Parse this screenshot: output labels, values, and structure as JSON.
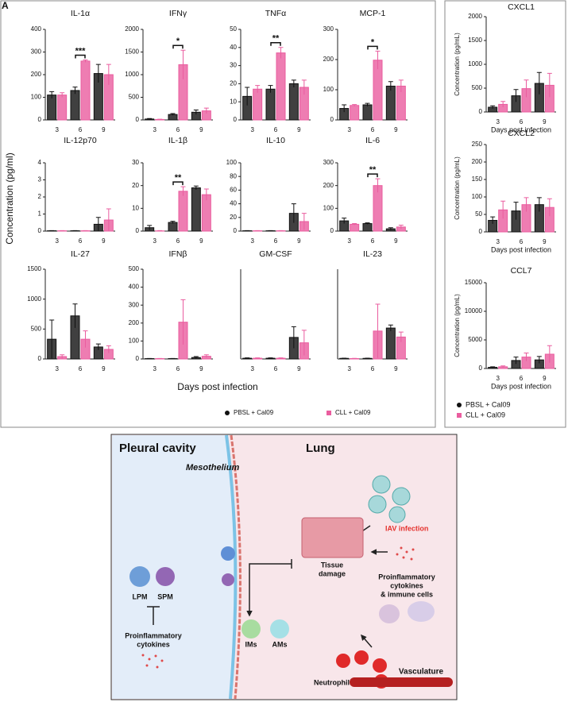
{
  "figure": {
    "panel_label": "A",
    "xlabel": "Days post infection",
    "ylabel": "Concentration (pg/ml)"
  },
  "chart_data": [
    {
      "type": "bar",
      "title": "IL-1α",
      "categories": [
        "3",
        "6",
        "9"
      ],
      "ylim": [
        0,
        400
      ],
      "yticks": [
        0,
        100,
        200,
        300,
        400
      ],
      "annotation": {
        "text": "***",
        "category": "6"
      },
      "series": [
        {
          "name": "PBSL + Cal09",
          "color": "#404040",
          "values": [
            110,
            130,
            205
          ],
          "errors": [
            15,
            15,
            40
          ]
        },
        {
          "name": "CLL + Cal09",
          "color": "#ea5d9f",
          "values": [
            110,
            260,
            200
          ],
          "errors": [
            10,
            5,
            45
          ]
        }
      ]
    },
    {
      "type": "bar",
      "title": "IFNγ",
      "categories": [
        "3",
        "6",
        "9"
      ],
      "ylim": [
        0,
        2000
      ],
      "yticks": [
        0,
        500,
        1000,
        1500,
        2000
      ],
      "annotation": {
        "text": "*",
        "category": "6"
      },
      "series": [
        {
          "name": "PBSL + Cal09",
          "color": "#404040",
          "values": [
            20,
            120,
            170
          ],
          "errors": [
            10,
            20,
            50
          ]
        },
        {
          "name": "CLL + Cal09",
          "color": "#ea5d9f",
          "values": [
            10,
            1220,
            200
          ],
          "errors": [
            5,
            320,
            60
          ]
        }
      ]
    },
    {
      "type": "bar",
      "title": "TNFα",
      "categories": [
        "3",
        "6",
        "9"
      ],
      "ylim": [
        0,
        50
      ],
      "yticks": [
        0,
        10,
        20,
        30,
        40,
        50
      ],
      "annotation": {
        "text": "**",
        "category": "6"
      },
      "series": [
        {
          "name": "PBSL + Cal09",
          "color": "#404040",
          "values": [
            13,
            17,
            20
          ],
          "errors": [
            5,
            2,
            2
          ]
        },
        {
          "name": "CLL + Cal09",
          "color": "#ea5d9f",
          "values": [
            17,
            37,
            18
          ],
          "errors": [
            2,
            3,
            4
          ]
        }
      ]
    },
    {
      "type": "bar",
      "title": "MCP-1",
      "categories": [
        "3",
        "6",
        "9"
      ],
      "ylim": [
        0,
        300
      ],
      "yticks": [
        0,
        100,
        200,
        300
      ],
      "annotation": {
        "text": "*",
        "category": "6"
      },
      "series": [
        {
          "name": "PBSL + Cal09",
          "color": "#404040",
          "values": [
            38,
            50,
            112
          ],
          "errors": [
            12,
            5,
            15
          ]
        },
        {
          "name": "CLL + Cal09",
          "color": "#ea5d9f",
          "values": [
            48,
            198,
            112
          ],
          "errors": [
            3,
            30,
            20
          ]
        }
      ]
    },
    {
      "type": "bar",
      "title": "IL-12p70",
      "categories": [
        "3",
        "6",
        "9"
      ],
      "ylim": [
        0,
        4
      ],
      "yticks": [
        0,
        1,
        2,
        3,
        4
      ],
      "series": [
        {
          "name": "PBSL + Cal09",
          "color": "#404040",
          "values": [
            0.02,
            0.02,
            0.4
          ],
          "errors": [
            0.01,
            0.01,
            0.4
          ]
        },
        {
          "name": "CLL + Cal09",
          "color": "#ea5d9f",
          "values": [
            0.02,
            0.02,
            0.65
          ],
          "errors": [
            0.01,
            0.01,
            0.65
          ]
        }
      ]
    },
    {
      "type": "bar",
      "title": "IL-1β",
      "categories": [
        "3",
        "6",
        "9"
      ],
      "ylim": [
        0,
        30
      ],
      "yticks": [
        0,
        10,
        20,
        30
      ],
      "annotation": {
        "text": "**",
        "category": "6"
      },
      "series": [
        {
          "name": "PBSL + Cal09",
          "color": "#404040",
          "values": [
            1.5,
            3.8,
            19
          ],
          "errors": [
            1,
            0.5,
            0.8
          ]
        },
        {
          "name": "CLL + Cal09",
          "color": "#ea5d9f",
          "values": [
            0.1,
            17.5,
            16
          ],
          "errors": [
            0.1,
            2,
            2.5
          ]
        }
      ]
    },
    {
      "type": "bar",
      "title": "IL-10",
      "categories": [
        "3",
        "6",
        "9"
      ],
      "ylim": [
        0,
        100
      ],
      "yticks": [
        0,
        20,
        40,
        60,
        80,
        100
      ],
      "series": [
        {
          "name": "PBSL + Cal09",
          "color": "#404040",
          "values": [
            0.5,
            0.5,
            26
          ],
          "errors": [
            0.2,
            0.2,
            14
          ]
        },
        {
          "name": "CLL + Cal09",
          "color": "#ea5d9f",
          "values": [
            0.5,
            0.5,
            14
          ],
          "errors": [
            0.2,
            0.2,
            12
          ]
        }
      ]
    },
    {
      "type": "bar",
      "title": "IL-6",
      "categories": [
        "3",
        "6",
        "9"
      ],
      "ylim": [
        0,
        300
      ],
      "yticks": [
        0,
        100,
        200,
        300
      ],
      "annotation": {
        "text": "**",
        "category": "6"
      },
      "series": [
        {
          "name": "PBSL + Cal09",
          "color": "#404040",
          "values": [
            45,
            33,
            10
          ],
          "errors": [
            12,
            3,
            5
          ]
        },
        {
          "name": "CLL + Cal09",
          "color": "#ea5d9f",
          "values": [
            30,
            200,
            18
          ],
          "errors": [
            3,
            30,
            8
          ]
        }
      ]
    },
    {
      "type": "bar",
      "title": "IL-27",
      "categories": [
        "3",
        "6",
        "9"
      ],
      "ylim": [
        0,
        1500
      ],
      "yticks": [
        0,
        500,
        1000,
        1500
      ],
      "series": [
        {
          "name": "PBSL + Cal09",
          "color": "#404040",
          "values": [
            330,
            720,
            200
          ],
          "errors": [
            320,
            200,
            50
          ]
        },
        {
          "name": "CLL + Cal09",
          "color": "#ea5d9f",
          "values": [
            40,
            330,
            160
          ],
          "errors": [
            30,
            140,
            60
          ]
        }
      ]
    },
    {
      "type": "bar",
      "title": "IFNβ",
      "categories": [
        "3",
        "6",
        "9"
      ],
      "ylim": [
        0,
        500
      ],
      "yticks": [
        0,
        100,
        200,
        300,
        400,
        500
      ],
      "series": [
        {
          "name": "PBSL + Cal09",
          "color": "#404040",
          "values": [
            2,
            2,
            8
          ],
          "errors": [
            1,
            1,
            5
          ]
        },
        {
          "name": "CLL + Cal09",
          "color": "#ea5d9f",
          "values": [
            2,
            205,
            15
          ],
          "errors": [
            1,
            125,
            8
          ]
        }
      ]
    },
    {
      "type": "bar",
      "title": "GM-CSF",
      "categories": [
        "3",
        "6",
        "9"
      ],
      "ylim": [
        0,
        2.5
      ],
      "yticks": [],
      "series": [
        {
          "name": "PBSL + Cal09",
          "color": "#404040",
          "values": [
            0.02,
            0.02,
            0.6
          ],
          "errors": [
            0.01,
            0.01,
            0.3
          ]
        },
        {
          "name": "CLL + Cal09",
          "color": "#ea5d9f",
          "values": [
            0.02,
            0.02,
            0.45
          ],
          "errors": [
            0.01,
            0.01,
            0.35
          ]
        }
      ]
    },
    {
      "type": "bar",
      "title": "IL-23",
      "categories": [
        "3",
        "6",
        "9"
      ],
      "ylim": [
        0,
        450
      ],
      "yticks": [],
      "series": [
        {
          "name": "PBSL + Cal09",
          "color": "#404040",
          "values": [
            3,
            3,
            155
          ],
          "errors": [
            1,
            1,
            15
          ]
        },
        {
          "name": "CLL + Cal09",
          "color": "#ea5d9f",
          "values": [
            2,
            140,
            110
          ],
          "errors": [
            1,
            135,
            25
          ]
        }
      ]
    },
    {
      "type": "bar",
      "title": "CXCL1",
      "xlabel": "Days post infection",
      "ylabel": "Concentration (pg/mL)",
      "categories": [
        "3",
        "6",
        "9"
      ],
      "ylim": [
        0,
        2000
      ],
      "yticks": [
        0,
        500,
        1000,
        1500,
        2000
      ],
      "series": [
        {
          "name": "PBSL + Cal09",
          "color": "#404040",
          "values": [
            100,
            340,
            600
          ],
          "errors": [
            30,
            130,
            230
          ]
        },
        {
          "name": "CLL + Cal09",
          "color": "#ea5d9f",
          "values": [
            160,
            490,
            560
          ],
          "errors": [
            60,
            180,
            250
          ]
        }
      ]
    },
    {
      "type": "bar",
      "title": "CXCL2",
      "xlabel": "Days post infection",
      "ylabel": "Concentration (pg/mL)",
      "categories": [
        "3",
        "6",
        "9"
      ],
      "ylim": [
        0,
        250
      ],
      "yticks": [
        0,
        50,
        100,
        150,
        200,
        250
      ],
      "series": [
        {
          "name": "PBSL + Cal09",
          "color": "#404040",
          "values": [
            33,
            60,
            78
          ],
          "errors": [
            10,
            25,
            20
          ]
        },
        {
          "name": "CLL + Cal09",
          "color": "#ea5d9f",
          "values": [
            63,
            78,
            70
          ],
          "errors": [
            25,
            20,
            25
          ]
        }
      ]
    },
    {
      "type": "bar",
      "title": "CCL7",
      "xlabel": "Days post infection",
      "ylabel": "Concentration (pg/mL)",
      "categories": [
        "3",
        "6",
        "9"
      ],
      "ylim": [
        0,
        15000
      ],
      "yticks": [
        0,
        5000,
        10000,
        15000
      ],
      "series": [
        {
          "name": "PBSL + Cal09",
          "color": "#404040",
          "values": [
            200,
            1400,
            1500
          ],
          "errors": [
            100,
            600,
            600
          ]
        },
        {
          "name": "CLL + Cal09",
          "color": "#ea5d9f",
          "values": [
            300,
            2000,
            2500
          ],
          "errors": [
            150,
            700,
            1500
          ]
        }
      ]
    }
  ],
  "diagram": {
    "pleural": "Pleural cavity",
    "lung": "Lung",
    "mesothelium": "Mesothelium",
    "iav": "IAV infection",
    "tissue": [
      "Tissue",
      "damage"
    ],
    "cytokines_cells": [
      "Proinflammatory",
      "cytokines",
      "& immune cells"
    ],
    "lpm": "LPM",
    "spm": "SPM",
    "cytokines": [
      "Proinflammatory",
      "cytokines"
    ],
    "ims": "IMs",
    "ams": "AMs",
    "neutrophils": "Neutrophils",
    "vasculature": "Vasculature"
  }
}
